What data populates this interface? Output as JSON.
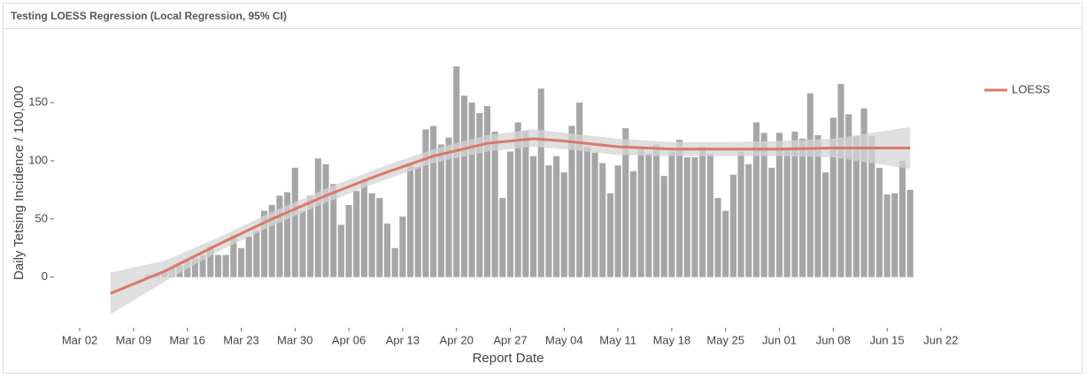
{
  "chart_data": {
    "type": "combo",
    "title": "Testing LOESS Regression (Local Regression, 95% CI)",
    "xlabel": "Report Date",
    "ylabel": "Daily Tetsing Incidence / 100,000",
    "xlim": [
      "Feb 28",
      "Jun 25"
    ],
    "xticks": [
      "Mar 02",
      "Mar 09",
      "Mar 16",
      "Mar 23",
      "Mar 30",
      "Apr 06",
      "Apr 13",
      "Apr 20",
      "Apr 27",
      "May 04",
      "May 11",
      "May 18",
      "May 25",
      "Jun 01",
      "Jun 08",
      "Jun 15",
      "Jun 22"
    ],
    "ylim": [
      -42,
      204
    ],
    "yticks": [
      0,
      50,
      100,
      150
    ],
    "legend": "right",
    "bars": {
      "color": "#a6a6a6",
      "x": [
        "Mar 11",
        "Mar 12",
        "Mar 13",
        "Mar 14",
        "Mar 15",
        "Mar 16",
        "Mar 17",
        "Mar 18",
        "Mar 19",
        "Mar 20",
        "Mar 21",
        "Mar 22",
        "Mar 23",
        "Mar 24",
        "Mar 25",
        "Mar 26",
        "Mar 27",
        "Mar 28",
        "Mar 29",
        "Mar 30",
        "Mar 31",
        "Apr 01",
        "Apr 02",
        "Apr 03",
        "Apr 04",
        "Apr 05",
        "Apr 06",
        "Apr 07",
        "Apr 08",
        "Apr 09",
        "Apr 10",
        "Apr 11",
        "Apr 12",
        "Apr 13",
        "Apr 14",
        "Apr 15",
        "Apr 16",
        "Apr 17",
        "Apr 18",
        "Apr 19",
        "Apr 20",
        "Apr 21",
        "Apr 22",
        "Apr 23",
        "Apr 24",
        "Apr 25",
        "Apr 26",
        "Apr 27",
        "Apr 28",
        "Apr 29",
        "Apr 30",
        "May 01",
        "May 02",
        "May 03",
        "May 04",
        "May 05",
        "May 06",
        "May 07",
        "May 08",
        "May 09",
        "May 10",
        "May 11",
        "May 12",
        "May 13",
        "May 14",
        "May 15",
        "May 16",
        "May 17",
        "May 18",
        "May 19",
        "May 20",
        "May 21",
        "May 22",
        "May 23",
        "May 24",
        "May 25",
        "May 26",
        "May 27",
        "May 28",
        "May 29",
        "May 30",
        "May 31",
        "Jun 01",
        "Jun 02",
        "Jun 03",
        "Jun 04",
        "Jun 05",
        "Jun 06",
        "Jun 07",
        "Jun 08",
        "Jun 09",
        "Jun 10",
        "Jun 11",
        "Jun 12",
        "Jun 13",
        "Jun 14",
        "Jun 15",
        "Jun 16",
        "Jun 17",
        "Jun 18"
      ],
      "values": [
        2,
        3,
        5,
        8,
        10,
        14,
        16,
        19,
        27,
        19,
        19,
        36,
        25,
        35,
        40,
        57,
        62,
        70,
        73,
        94,
        57,
        70,
        102,
        97,
        80,
        45,
        62,
        74,
        84,
        72,
        68,
        46,
        25,
        52,
        96,
        95,
        127,
        130,
        114,
        120,
        181,
        156,
        150,
        141,
        147,
        125,
        68,
        108,
        133,
        126,
        104,
        162,
        96,
        104,
        90,
        130,
        150,
        112,
        107,
        98,
        72,
        96,
        128,
        91,
        110,
        106,
        114,
        87,
        108,
        118,
        103,
        103,
        112,
        106,
        68,
        57,
        88,
        108,
        97,
        133,
        124,
        94,
        124,
        109,
        125,
        119,
        158,
        122,
        90,
        137,
        166,
        140,
        121,
        145,
        121,
        94,
        71,
        72,
        100,
        75
      ]
    },
    "loess": {
      "name": "LOESS",
      "color": "#d9796a",
      "ci_color": "#d4d4d4",
      "x": [
        "Mar 06",
        "Mar 13",
        "Mar 20",
        "Mar 27",
        "Apr 03",
        "Apr 10",
        "Apr 17",
        "Apr 24",
        "Apr 30",
        "May 04",
        "May 11",
        "May 18",
        "May 25",
        "Jun 01",
        "Jun 08",
        "Jun 18"
      ],
      "values": [
        -14,
        5,
        28,
        50,
        70,
        88,
        104,
        115,
        119,
        117,
        112,
        110,
        110,
        110,
        111,
        111
      ],
      "ci_lower": [
        -32,
        -4,
        22,
        44,
        64,
        82,
        98,
        108,
        112,
        110,
        105,
        104,
        104,
        104,
        103,
        93
      ],
      "ci_upper": [
        4,
        14,
        34,
        56,
        76,
        94,
        110,
        122,
        127,
        124,
        119,
        116,
        116,
        117,
        119,
        129
      ]
    }
  }
}
